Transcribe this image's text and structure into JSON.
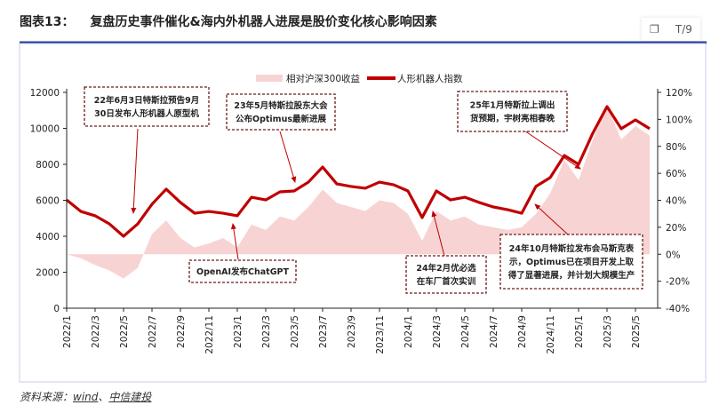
{
  "title": {
    "label": "图表13：",
    "text": "复盘历史事件催化&海内外机器人进展是股价变化核心影响因素"
  },
  "toolbar": {
    "copy_icon": "copy-icon",
    "page_label": "T/9"
  },
  "footer": {
    "prefix": "资料来源：",
    "source1": "wind",
    "sep": "、",
    "source2": "中信建投"
  },
  "colors": {
    "line": "#C00000",
    "area": "#F8D3D3",
    "frame": "#1F3E9A",
    "annotation_border": "#6B1A1A"
  },
  "chart_data": {
    "type": "line+area",
    "legend": [
      "相对沪深300收益",
      "人形机器人指数"
    ],
    "legend_placement": "top-center",
    "x": [
      "2022/1",
      "2022/2",
      "2022/3",
      "2022/4",
      "2022/5",
      "2022/6",
      "2022/7",
      "2022/8",
      "2022/9",
      "2022/10",
      "2022/11",
      "2022/12",
      "2023/1",
      "2023/2",
      "2023/3",
      "2023/4",
      "2023/5",
      "2023/6",
      "2023/7",
      "2023/8",
      "2023/9",
      "2023/10",
      "2023/11",
      "2023/12",
      "2024/1",
      "2024/2",
      "2024/3",
      "2024/4",
      "2024/5",
      "2024/6",
      "2024/7",
      "2024/8",
      "2024/9",
      "2024/10",
      "2024/11",
      "2024/12",
      "2025/1",
      "2025/2",
      "2025/3",
      "2025/4",
      "2025/5",
      "2025/6"
    ],
    "x_tick_labels": [
      "2022/1",
      "2022/3",
      "2022/5",
      "2022/7",
      "2022/9",
      "2022/11",
      "2023/1",
      "2023/3",
      "2023/5",
      "2023/7",
      "2023/9",
      "2023/11",
      "2024/1",
      "2024/3",
      "2024/5",
      "2024/7",
      "2024/9",
      "2024/11",
      "2025/1",
      "2025/3",
      "2025/5"
    ],
    "series": [
      {
        "name": "人形机器人指数",
        "axis": "left",
        "type": "line",
        "values": [
          6020,
          5380,
          5140,
          4690,
          4000,
          4690,
          5780,
          6620,
          5880,
          5280,
          5380,
          5280,
          5140,
          6170,
          6020,
          6470,
          6520,
          7010,
          7850,
          6910,
          6770,
          6670,
          7010,
          6860,
          6520,
          5040,
          6520,
          6020,
          6170,
          5880,
          5630,
          5480,
          5280,
          6770,
          7260,
          8490,
          8000,
          9730,
          11210,
          9980,
          10470,
          9980
        ]
      },
      {
        "name": "相对沪深300收益",
        "axis": "right",
        "type": "area",
        "values": [
          0,
          -3,
          -8,
          -12,
          -18,
          -10,
          15,
          25,
          12,
          5,
          8,
          12,
          5,
          22,
          18,
          28,
          25,
          35,
          48,
          38,
          35,
          32,
          40,
          38,
          30,
          10,
          32,
          25,
          28,
          22,
          20,
          18,
          20,
          30,
          45,
          70,
          55,
          85,
          110,
          85,
          95,
          88
        ]
      }
    ],
    "y_left": {
      "range": [
        0,
        12000
      ],
      "ticks": [
        "0",
        "2000",
        "4000",
        "6000",
        "8000",
        "10000",
        "12000"
      ]
    },
    "y_right": {
      "range": [
        -40,
        120
      ],
      "ticks": [
        "-40%",
        "-20%",
        "0%",
        "20%",
        "40%",
        "60%",
        "80%",
        "100%",
        "120%"
      ]
    },
    "annotations": [
      {
        "lines": [
          "22年6月3日特斯拉预告9月",
          "30日发布人形机器人原型机"
        ],
        "target": "2022/6"
      },
      {
        "lines": [
          "23年5月特斯拉股东大会",
          "公布Optimus最新进展"
        ],
        "target": "2023/6"
      },
      {
        "lines": [
          "OpenAI发布ChatGPT"
        ],
        "target": "2022/12"
      },
      {
        "lines": [
          "24年2月优必选",
          "在车厂首次实训"
        ],
        "target": "2024/3"
      },
      {
        "lines": [
          "24年10月特斯拉发布会马斯克表",
          "示，Optimus已在项目开发上取",
          "得了显著进展，并计划大规模生产"
        ],
        "target": "2024/10"
      },
      {
        "lines": [
          "25年1月特斯拉上调出",
          "货预期，宇树亮相春晚"
        ],
        "target": "2025/1"
      }
    ]
  }
}
